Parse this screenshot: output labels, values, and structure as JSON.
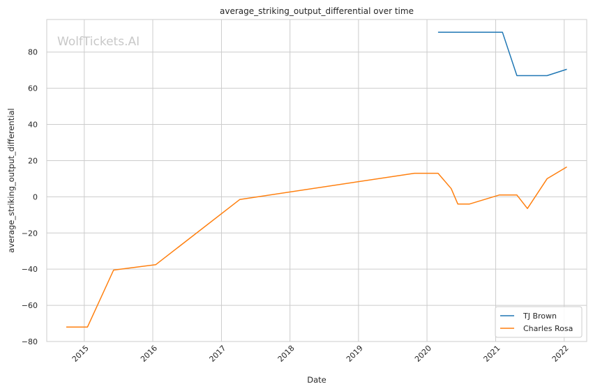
{
  "chart_data": {
    "type": "line",
    "title": "average_striking_output_differential over time",
    "xlabel": "Date",
    "ylabel": "average_striking_output_differential",
    "watermark": "WolfTickets.AI",
    "x_ticks": [
      "2015",
      "2016",
      "2017",
      "2018",
      "2019",
      "2020",
      "2021",
      "2022"
    ],
    "y_ticks": [
      "−80",
      "−60",
      "−40",
      "−20",
      "0",
      "20",
      "40",
      "60",
      "80"
    ],
    "xlim": [
      "2014-06-15",
      "2022-05-01"
    ],
    "ylim": [
      -80,
      98
    ],
    "grid": true,
    "legend_position": "lower-right",
    "series": [
      {
        "name": "TJ Brown",
        "color": "#1f77b4",
        "points": [
          {
            "x": "2020-02-29",
            "y": 91
          },
          {
            "x": "2021-02-06",
            "y": 91
          },
          {
            "x": "2021-04-24",
            "y": 67
          },
          {
            "x": "2021-10-02",
            "y": 67
          },
          {
            "x": "2022-01-15",
            "y": 70.5
          }
        ]
      },
      {
        "name": "Charles Rosa",
        "color": "#ff7f0e",
        "points": [
          {
            "x": "2014-09-27",
            "y": -72
          },
          {
            "x": "2015-01-18",
            "y": -72
          },
          {
            "x": "2015-06-06",
            "y": -40.5
          },
          {
            "x": "2016-01-17",
            "y": -37.5
          },
          {
            "x": "2017-04-08",
            "y": -1.5
          },
          {
            "x": "2019-10-26",
            "y": 13
          },
          {
            "x": "2020-02-29",
            "y": 13
          },
          {
            "x": "2020-05-09",
            "y": 4.5
          },
          {
            "x": "2020-06-13",
            "y": -4
          },
          {
            "x": "2020-08-15",
            "y": -4
          },
          {
            "x": "2021-01-20",
            "y": 1
          },
          {
            "x": "2021-04-24",
            "y": 1
          },
          {
            "x": "2021-06-19",
            "y": -6.5
          },
          {
            "x": "2021-10-02",
            "y": 10
          },
          {
            "x": "2022-01-15",
            "y": 16.5
          }
        ]
      }
    ]
  }
}
